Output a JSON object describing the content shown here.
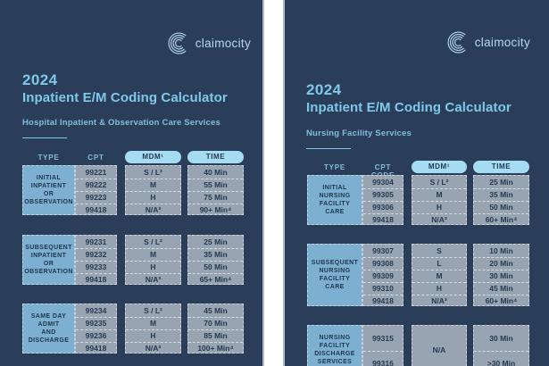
{
  "brand": {
    "name": "claimocity"
  },
  "colors": {
    "card_bg": "#2b3e59",
    "accent_blue": "#7ec8ea",
    "accent_dim": "#82bedd",
    "logo_blue": "#b5d8ea",
    "pill_bg": "#a5dcf4",
    "type_cell_bg": "#7db0d0",
    "data_cell_bg": "#99a4b3",
    "cell_text": "#24394f",
    "gap_background": "#ffffff"
  },
  "panels": [
    {
      "id": "hospital-inpatient",
      "year": "2024",
      "title": "Inpatient E/M Coding Calculator",
      "subtitle": "Hospital Inpatient & Observation Care Services",
      "columns": {
        "type": "TYPE",
        "cpt": "CPT",
        "mdm": "MDM¹",
        "time": "TIME"
      },
      "groups": [
        {
          "type_lines": [
            "INITIAL",
            "INPATIENT",
            "OR",
            "OBSERVATION"
          ],
          "rows": [
            {
              "cpt": "99221",
              "mdm": "S / L²",
              "time": "40 Min"
            },
            {
              "cpt": "99222",
              "mdm": "M",
              "time": "55 Min"
            },
            {
              "cpt": "99223",
              "mdm": "H",
              "time": "75 Min"
            },
            {
              "cpt": "99418",
              "mdm": "N/A³",
              "time": "90+ Min⁴"
            }
          ]
        },
        {
          "type_lines": [
            "SUBSEQUENT",
            "INPATIENT",
            "OR",
            "OBSERVATION"
          ],
          "rows": [
            {
              "cpt": "99231",
              "mdm": "S / L²",
              "time": "25 Min"
            },
            {
              "cpt": "99232",
              "mdm": "M",
              "time": "35 Min"
            },
            {
              "cpt": "99233",
              "mdm": "H",
              "time": "50 Min"
            },
            {
              "cpt": "99418",
              "mdm": "N/A³",
              "time": "65+ Min⁴"
            }
          ]
        },
        {
          "type_lines": [
            "SAME DAY",
            "ADMIT",
            "AND",
            "DISCHARGE"
          ],
          "rows": [
            {
              "cpt": "99234",
              "mdm": "S / L²",
              "time": "45 Min"
            },
            {
              "cpt": "99235",
              "mdm": "M",
              "time": "70 Min"
            },
            {
              "cpt": "99236",
              "mdm": "H",
              "time": "85 Min"
            },
            {
              "cpt": "99418",
              "mdm": "N/A³",
              "time": "100+ Min⁴"
            }
          ]
        }
      ]
    },
    {
      "id": "nursing-facility",
      "year": "2024",
      "title": "Inpatient E/M Coding Calculator",
      "subtitle": "Nursing Facility Services",
      "columns": {
        "type": "TYPE",
        "cpt": "CPT CODE",
        "mdm": "MDM¹",
        "time": "TIME"
      },
      "groups": [
        {
          "type_lines": [
            "INITIAL",
            "NURSING",
            "FACILITY",
            "CARE"
          ],
          "rows": [
            {
              "cpt": "99304",
              "mdm": "S / L²",
              "time": "25 Min"
            },
            {
              "cpt": "99305",
              "mdm": "M",
              "time": "35 Min"
            },
            {
              "cpt": "99306",
              "mdm": "H",
              "time": "50 Min"
            },
            {
              "cpt": "99418",
              "mdm": "N/A³",
              "time": "60+ Min⁴"
            }
          ]
        },
        {
          "type_lines": [
            "SUBSEQUENT",
            "NURSING",
            "FACILITY",
            "CARE"
          ],
          "rows": [
            {
              "cpt": "99307",
              "mdm": "S",
              "time": "10 Min"
            },
            {
              "cpt": "99308",
              "mdm": "L",
              "time": "20 Min"
            },
            {
              "cpt": "99309",
              "mdm": "M",
              "time": "30 Min"
            },
            {
              "cpt": "99310",
              "mdm": "H",
              "time": "45 Min"
            },
            {
              "cpt": "99418",
              "mdm": "N/A³",
              "time": "60+ Min⁴"
            }
          ]
        },
        {
          "type_lines": [
            "NURSING",
            "FACILITY",
            "DISCHARGE",
            "SERVICES"
          ],
          "mdm_merged": "N/A",
          "rows": [
            {
              "cpt": "99315",
              "mdm": "N/A",
              "time": "30 Min"
            },
            {
              "cpt": "99316",
              "mdm": "N/A",
              "time": ">30 Min"
            }
          ]
        }
      ]
    }
  ]
}
